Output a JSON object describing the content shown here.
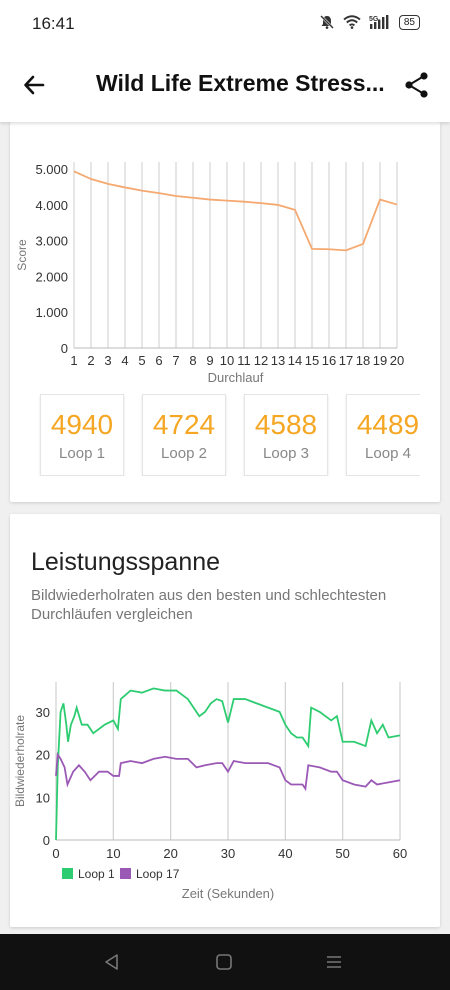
{
  "status_bar": {
    "time": "16:41",
    "network": "5G",
    "battery": "85",
    "icons": [
      "mute-icon",
      "wifi-icon",
      "signal-icon",
      "battery-icon"
    ]
  },
  "app_bar": {
    "title": "Wild Life Extreme Stress...",
    "back_icon": "arrow-left-icon",
    "share_icon": "share-icon"
  },
  "score_card": {
    "loops": [
      {
        "score": "4940",
        "label": "Loop 1"
      },
      {
        "score": "4724",
        "label": "Loop 2"
      },
      {
        "score": "4588",
        "label": "Loop 3"
      },
      {
        "score": "4489",
        "label": "Loop 4"
      }
    ]
  },
  "performance": {
    "title": "Leistungsspanne",
    "description": "Bildwiederholraten aus den besten und schlechtesten Durchläufen vergleichen"
  },
  "chart_data": [
    {
      "type": "line",
      "ylabel": "Score",
      "xlabel": "Durchlauf",
      "x": [
        1,
        2,
        3,
        4,
        5,
        6,
        7,
        8,
        9,
        10,
        11,
        12,
        13,
        14,
        15,
        16,
        17,
        18,
        19,
        20
      ],
      "y_ticks": [
        "0",
        "1.000",
        "2.000",
        "3.000",
        "4.000",
        "5.000"
      ],
      "ylim": [
        0,
        5200
      ],
      "series": [
        {
          "color": "#f5a970",
          "values": [
            4940,
            4724,
            4588,
            4489,
            4400,
            4330,
            4250,
            4200,
            4150,
            4120,
            4090,
            4050,
            4000,
            3860,
            2770,
            2760,
            2730,
            2910,
            4150,
            4010
          ]
        }
      ],
      "grid": "vertical"
    },
    {
      "type": "line",
      "ylabel": "Bildwiederholrate",
      "xlabel": "Zeit (Sekunden)",
      "x_ticks": [
        "0",
        "10",
        "20",
        "30",
        "40",
        "50",
        "60"
      ],
      "y_ticks": [
        "0",
        "10",
        "20",
        "30"
      ],
      "xlim": [
        0,
        60
      ],
      "ylim": [
        0,
        37
      ],
      "legend_position": "bottom-left",
      "series": [
        {
          "name": "Loop 1",
          "color": "#2ecc71",
          "points": [
            [
              0,
              0
            ],
            [
              0.3,
              17
            ],
            [
              0.8,
              30
            ],
            [
              1.3,
              32
            ],
            [
              1.8,
              27
            ],
            [
              2.1,
              23
            ],
            [
              2.6,
              27
            ],
            [
              3.2,
              29
            ],
            [
              3.6,
              31
            ],
            [
              4.5,
              27
            ],
            [
              5.5,
              27
            ],
            [
              6.5,
              25
            ],
            [
              8.5,
              27
            ],
            [
              10,
              28
            ],
            [
              10.8,
              26
            ],
            [
              11.3,
              33
            ],
            [
              13,
              35
            ],
            [
              15,
              34.5
            ],
            [
              17,
              35.5
            ],
            [
              19,
              35
            ],
            [
              21,
              35
            ],
            [
              23,
              33
            ],
            [
              25,
              29
            ],
            [
              26,
              30
            ],
            [
              27,
              32
            ],
            [
              28,
              33
            ],
            [
              29,
              32.5
            ],
            [
              30,
              27.5
            ],
            [
              31,
              33
            ],
            [
              33,
              33
            ],
            [
              35,
              32
            ],
            [
              37,
              31
            ],
            [
              39,
              30
            ],
            [
              40,
              27
            ],
            [
              41,
              25
            ],
            [
              42,
              24
            ],
            [
              43,
              24
            ],
            [
              44,
              22
            ],
            [
              44.5,
              31
            ],
            [
              46,
              30
            ],
            [
              48,
              28
            ],
            [
              49,
              29
            ],
            [
              50,
              23
            ],
            [
              52,
              23
            ],
            [
              54,
              22
            ],
            [
              55,
              28
            ],
            [
              56,
              25
            ],
            [
              57,
              27
            ],
            [
              58,
              24
            ],
            [
              60,
              24.5
            ]
          ]
        },
        {
          "name": "Loop 17",
          "color": "#9b59b6",
          "points": [
            [
              0,
              15
            ],
            [
              0.3,
              20
            ],
            [
              0.8,
              19
            ],
            [
              1.5,
              17
            ],
            [
              2,
              13
            ],
            [
              3,
              16
            ],
            [
              4,
              17.5
            ],
            [
              5,
              16
            ],
            [
              6,
              14
            ],
            [
              7.5,
              16
            ],
            [
              9,
              16
            ],
            [
              10,
              15
            ],
            [
              11,
              15
            ],
            [
              11.3,
              18
            ],
            [
              13,
              18.5
            ],
            [
              15,
              18
            ],
            [
              17,
              19
            ],
            [
              19,
              19.5
            ],
            [
              21,
              19
            ],
            [
              23,
              19
            ],
            [
              24.5,
              17
            ],
            [
              26,
              17.5
            ],
            [
              28,
              18
            ],
            [
              29,
              18
            ],
            [
              30,
              16
            ],
            [
              31,
              18.5
            ],
            [
              33,
              18
            ],
            [
              35,
              18
            ],
            [
              37,
              18
            ],
            [
              39,
              17
            ],
            [
              40,
              14
            ],
            [
              41,
              13
            ],
            [
              42,
              13
            ],
            [
              43,
              13
            ],
            [
              43.5,
              12
            ],
            [
              44,
              17.5
            ],
            [
              46,
              17
            ],
            [
              48,
              16
            ],
            [
              49,
              16
            ],
            [
              50,
              14
            ],
            [
              52,
              13
            ],
            [
              54,
              12.5
            ],
            [
              55,
              14
            ],
            [
              56,
              13
            ],
            [
              58,
              13.5
            ],
            [
              60,
              14
            ]
          ]
        }
      ]
    }
  ],
  "nav_bar": {
    "icons": [
      "back-triangle-icon",
      "home-square-icon",
      "recents-menu-icon"
    ]
  }
}
